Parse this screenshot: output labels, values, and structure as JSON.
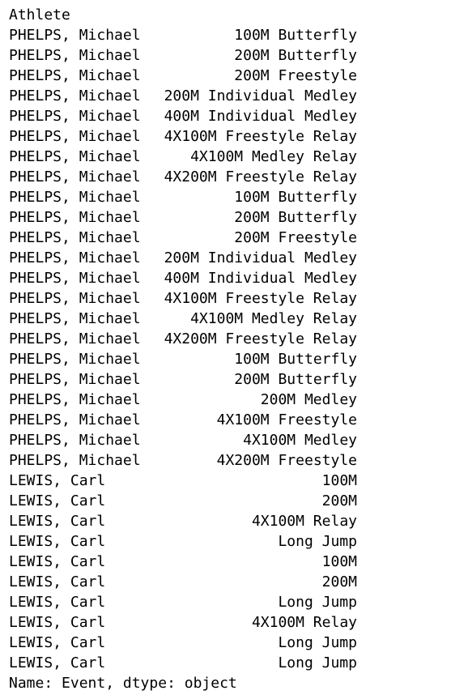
{
  "index_name": "Athlete",
  "rows": [
    {
      "athlete": "PHELPS, Michael",
      "event": "100M Butterfly"
    },
    {
      "athlete": "PHELPS, Michael",
      "event": "200M Butterfly"
    },
    {
      "athlete": "PHELPS, Michael",
      "event": "200M Freestyle"
    },
    {
      "athlete": "PHELPS, Michael",
      "event": "200M Individual Medley"
    },
    {
      "athlete": "PHELPS, Michael",
      "event": "400M Individual Medley"
    },
    {
      "athlete": "PHELPS, Michael",
      "event": "4X100M Freestyle Relay"
    },
    {
      "athlete": "PHELPS, Michael",
      "event": "4X100M Medley Relay"
    },
    {
      "athlete": "PHELPS, Michael",
      "event": "4X200M Freestyle Relay"
    },
    {
      "athlete": "PHELPS, Michael",
      "event": "100M Butterfly"
    },
    {
      "athlete": "PHELPS, Michael",
      "event": "200M Butterfly"
    },
    {
      "athlete": "PHELPS, Michael",
      "event": "200M Freestyle"
    },
    {
      "athlete": "PHELPS, Michael",
      "event": "200M Individual Medley"
    },
    {
      "athlete": "PHELPS, Michael",
      "event": "400M Individual Medley"
    },
    {
      "athlete": "PHELPS, Michael",
      "event": "4X100M Freestyle Relay"
    },
    {
      "athlete": "PHELPS, Michael",
      "event": "4X100M Medley Relay"
    },
    {
      "athlete": "PHELPS, Michael",
      "event": "4X200M Freestyle Relay"
    },
    {
      "athlete": "PHELPS, Michael",
      "event": "100M Butterfly"
    },
    {
      "athlete": "PHELPS, Michael",
      "event": "200M Butterfly"
    },
    {
      "athlete": "PHELPS, Michael",
      "event": "200M Medley"
    },
    {
      "athlete": "PHELPS, Michael",
      "event": "4X100M Freestyle"
    },
    {
      "athlete": "PHELPS, Michael",
      "event": "4X100M Medley"
    },
    {
      "athlete": "PHELPS, Michael",
      "event": "4X200M Freestyle"
    },
    {
      "athlete": "LEWIS, Carl",
      "event": "100M"
    },
    {
      "athlete": "LEWIS, Carl",
      "event": "200M"
    },
    {
      "athlete": "LEWIS, Carl",
      "event": "4X100M Relay"
    },
    {
      "athlete": "LEWIS, Carl",
      "event": "Long Jump"
    },
    {
      "athlete": "LEWIS, Carl",
      "event": "100M"
    },
    {
      "athlete": "LEWIS, Carl",
      "event": "200M"
    },
    {
      "athlete": "LEWIS, Carl",
      "event": "Long Jump"
    },
    {
      "athlete": "LEWIS, Carl",
      "event": "4X100M Relay"
    },
    {
      "athlete": "LEWIS, Carl",
      "event": "Long Jump"
    },
    {
      "athlete": "LEWIS, Carl",
      "event": "Long Jump"
    }
  ],
  "footer": "Name: Event, dtype: object"
}
